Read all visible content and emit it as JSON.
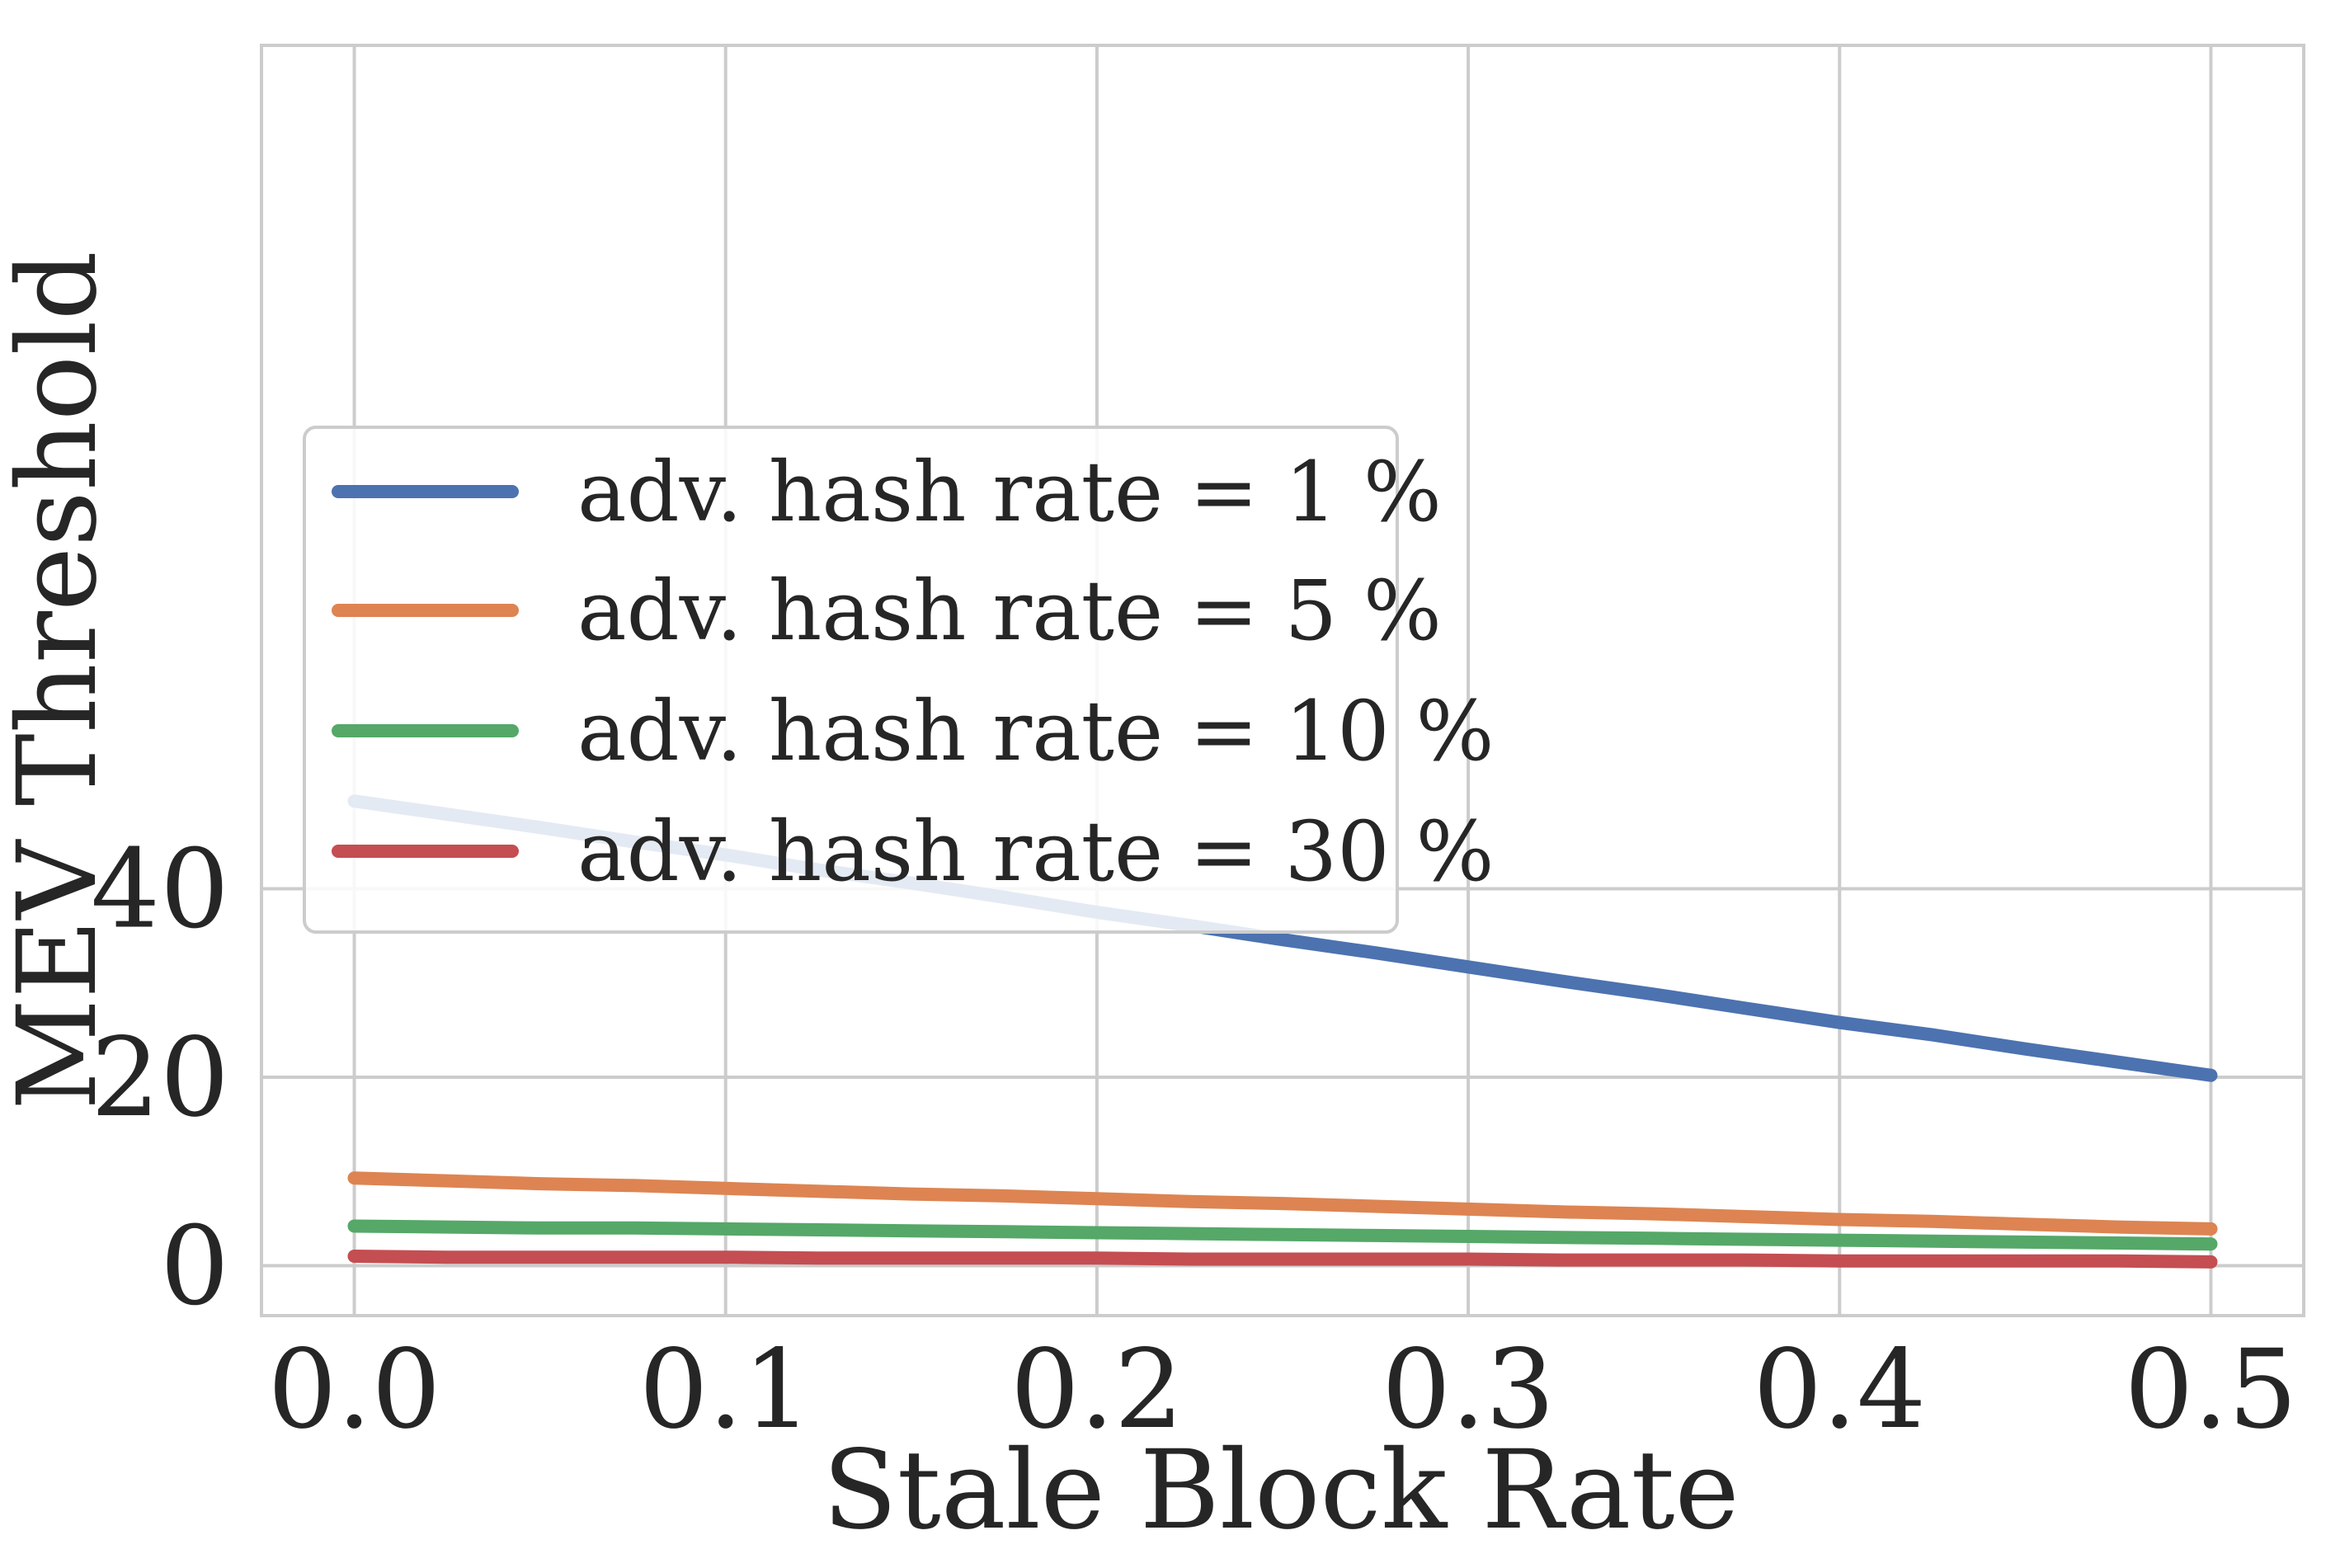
{
  "chart_data": {
    "type": "line",
    "title": "",
    "xlabel": "Stale Block Rate",
    "ylabel": "MEV Threshold",
    "xlim": [
      -0.025,
      0.525
    ],
    "ylim": [
      -5.3,
      129.5
    ],
    "xticks": [
      0.0,
      0.1,
      0.2,
      0.3,
      0.4,
      0.5
    ],
    "xtick_labels": [
      "0.0",
      "0.1",
      "0.2",
      "0.3",
      "0.4",
      "0.5"
    ],
    "yticks": [
      0,
      20,
      40
    ],
    "ytick_labels": [
      "0",
      "20",
      "40"
    ],
    "grid": true,
    "legend_position": "center-left",
    "x": [
      0.0,
      0.025,
      0.05,
      0.075,
      0.1,
      0.125,
      0.15,
      0.175,
      0.2,
      0.225,
      0.25,
      0.275,
      0.3,
      0.325,
      0.35,
      0.375,
      0.4,
      0.425,
      0.45,
      0.475,
      0.5
    ],
    "series": [
      {
        "name": "adv. hash rate = 1 %",
        "color": "#4c72b0",
        "values": [
          49.3,
          47.9,
          46.5,
          45.0,
          43.6,
          42.0,
          40.6,
          39.1,
          37.5,
          36.1,
          34.6,
          33.2,
          31.7,
          30.2,
          28.8,
          27.3,
          25.8,
          24.5,
          23.0,
          21.6,
          20.2
        ]
      },
      {
        "name": "adv. hash rate = 5 %",
        "color": "#dd8452",
        "values": [
          9.3,
          9.0,
          8.7,
          8.5,
          8.2,
          7.9,
          7.6,
          7.4,
          7.1,
          6.8,
          6.6,
          6.3,
          6.0,
          5.7,
          5.5,
          5.2,
          4.9,
          4.7,
          4.4,
          4.1,
          3.9
        ]
      },
      {
        "name": "adv. hash rate = 10 %",
        "color": "#55a868",
        "values": [
          4.2,
          4.1,
          4.0,
          4.0,
          3.9,
          3.8,
          3.7,
          3.6,
          3.5,
          3.4,
          3.3,
          3.2,
          3.1,
          3.0,
          2.9,
          2.8,
          2.7,
          2.6,
          2.5,
          2.4,
          2.3
        ]
      },
      {
        "name": "adv. hash rate = 30 %",
        "color": "#c44e52",
        "values": [
          1.0,
          0.9,
          0.9,
          0.9,
          0.9,
          0.8,
          0.8,
          0.8,
          0.8,
          0.7,
          0.7,
          0.7,
          0.7,
          0.6,
          0.6,
          0.6,
          0.5,
          0.5,
          0.5,
          0.5,
          0.4
        ]
      }
    ]
  },
  "style": {
    "grid_color": "#cccccc",
    "spine_color": "#cccccc",
    "text_color": "#262626"
  }
}
